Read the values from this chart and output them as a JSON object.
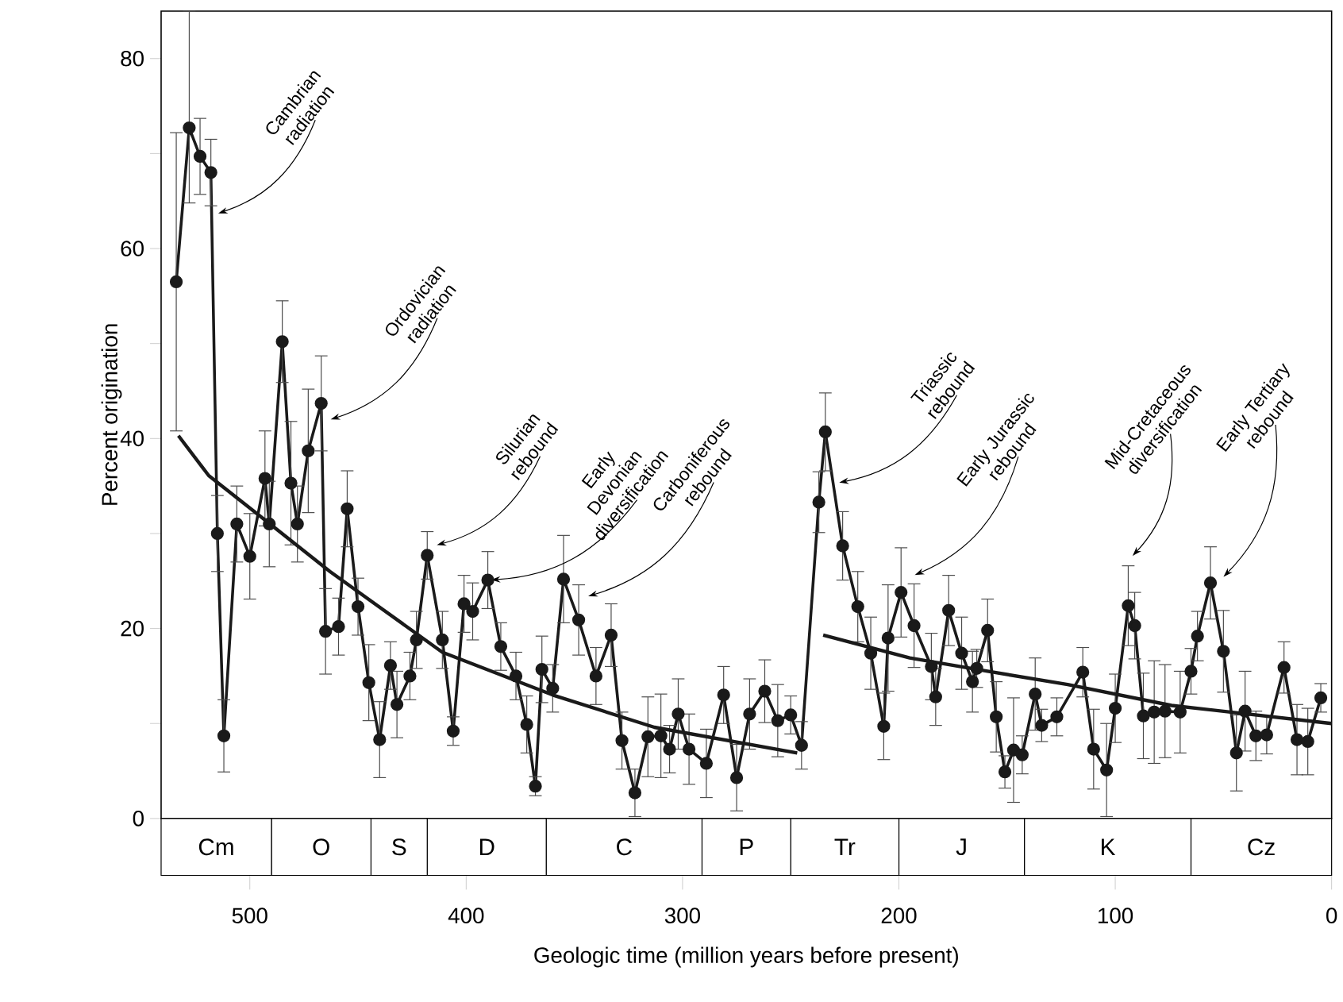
{
  "chart_data": [
    {
      "type": "line",
      "ylabel": "Percent origination",
      "xlim": [
        541,
        0
      ],
      "ylim": [
        0,
        85
      ],
      "tick_labels": "y",
      "yticks": [
        0,
        {
          "value": 10,
          "label": null
        },
        20,
        {
          "value": 30,
          "label": null
        },
        40,
        {
          "value": 50,
          "label": null
        },
        60,
        {
          "value": 70,
          "label": null
        },
        80
      ],
      "line_style": "solid",
      "series": [
        {
          "color": "#1a1a1a",
          "marker": "circle",
          "x": [
            534,
            528,
            523,
            518,
            515,
            512,
            506,
            500,
            493,
            491,
            485,
            481,
            478,
            473,
            467,
            465,
            459,
            455,
            450,
            445,
            440,
            435,
            432,
            426,
            423,
            418,
            411,
            406,
            401,
            397,
            390,
            384,
            377,
            372,
            368,
            365,
            360,
            355,
            348,
            340,
            333,
            328,
            322,
            316,
            310,
            306,
            302,
            297,
            289,
            281,
            275,
            269,
            262,
            256,
            250,
            245,
            237,
            234,
            226,
            219,
            213,
            207,
            205,
            199,
            193,
            185,
            183,
            177,
            171,
            166,
            164,
            159,
            155,
            151,
            147,
            143,
            137,
            134,
            127,
            115,
            110,
            104,
            100,
            94,
            91,
            87,
            82,
            77,
            70,
            65,
            62,
            56,
            50,
            44,
            40,
            35,
            30,
            22,
            16,
            11,
            5
          ],
          "values": [
            56.5,
            72.7,
            69.7,
            68,
            30,
            8.7,
            31,
            27.6,
            35.8,
            31,
            50.2,
            35.3,
            31,
            38.7,
            43.7,
            19.7,
            20.2,
            32.6,
            22.3,
            14.3,
            8.3,
            16.1,
            12,
            15,
            18.8,
            27.7,
            18.8,
            9.2,
            22.6,
            21.8,
            25.1,
            18.1,
            15,
            9.9,
            3.4,
            15.7,
            13.7,
            25.2,
            20.9,
            15,
            19.3,
            8.2,
            2.7,
            8.6,
            8.7,
            7.3,
            11,
            7.3,
            5.8,
            13,
            4.3,
            11,
            13.4,
            10.3,
            10.9,
            7.7,
            33.3,
            40.7,
            28.7,
            22.3,
            17.4,
            9.7,
            19,
            23.8,
            20.3,
            16,
            12.8,
            21.9,
            17.4,
            14.4,
            15.8,
            19.8,
            10.7,
            4.9,
            7.2,
            6.7,
            13.1,
            9.8,
            10.7,
            15.4,
            7.3,
            5.1,
            11.6,
            22.4,
            20.3,
            10.8,
            11.2,
            11.3,
            11.2,
            15.5,
            19.2,
            24.8,
            17.6,
            6.9,
            11.3,
            8.7,
            8.8,
            15.9,
            8.3,
            8.1,
            12.7
          ],
          "errors": [
            15.7,
            [
              64.8,
              85
            ],
            4,
            3.5,
            4,
            3.8,
            4,
            4.5,
            5,
            4.5,
            4.3,
            6.5,
            4,
            6.5,
            5,
            4.5,
            3,
            4,
            3,
            4,
            4,
            2.5,
            3.5,
            2.5,
            3,
            2.5,
            3,
            1.5,
            3,
            3,
            3,
            2.5,
            2.5,
            3,
            1,
            3.5,
            2.5,
            4.6,
            3.7,
            3,
            3.3,
            3,
            2.5,
            4.2,
            4.4,
            2.5,
            3.7,
            3.7,
            3.6,
            3,
            3.5,
            3.7,
            3.3,
            3.8,
            2,
            2.5,
            3.2,
            4.1,
            3.6,
            3.7,
            3.8,
            3.5,
            5.6,
            4.7,
            4.4,
            3.5,
            3,
            3.7,
            3.8,
            3.2,
            2,
            3.3,
            3.7,
            1.7,
            5.5,
            2,
            3.8,
            1.7,
            2,
            2.6,
            4.2,
            4.9,
            3.6,
            4.2,
            3.5,
            4.5,
            5.4,
            4.9,
            4.3,
            2.4,
            2.6,
            3.8,
            4.3,
            4,
            4.2,
            2.6,
            2,
            2.7,
            3.7,
            3.5,
            1.5
          ]
        },
        {
          "color": "#1a1a1a",
          "marker": "none",
          "x": [
            533,
            519,
            494,
            463,
            411,
            360,
            313,
            247
          ],
          "values": [
            40.3,
            36.1,
            31.6,
            26,
            17.5,
            13,
            9.6,
            6.9
          ]
        },
        {
          "color": "#1a1a1a",
          "marker": "none",
          "x": [
            235,
            195,
            159,
            122,
            74,
            0
          ],
          "values": [
            19.3,
            16.9,
            15.5,
            14.1,
            11.9,
            10
          ]
        }
      ],
      "annotations": [
        {
          "text": "Cambrian radiation",
          "x": 516,
          "y": 63.6
        },
        {
          "text": "Ordovician radiation",
          "x": 464,
          "y": 41.9
        },
        {
          "text": "Silurian rebound",
          "x": 415,
          "y": 28.7
        },
        {
          "text": "Early Devonian diversification",
          "x": 390,
          "y": 25.1
        },
        {
          "text": "Carboniferous rebound",
          "x": 345,
          "y": 23.3
        },
        {
          "text": "Triassic rebound",
          "x": 229,
          "y": 35.3
        },
        {
          "text": "Early Jurassic rebound",
          "x": 194,
          "y": 25.5
        },
        {
          "text": "Mid-Cretaceous diversification",
          "x": 93,
          "y": 27.4
        },
        {
          "text": "Early Tertiary rebound",
          "x": 51,
          "y": 25.2
        }
      ]
    },
    {
      "type": "bar",
      "orientation": "horizontal",
      "stacked": true,
      "xlabel": "Geologic time (million years before present)",
      "xlim": [
        541,
        0
      ],
      "xticks": [
        500,
        400,
        300,
        200,
        100,
        0
      ],
      "tick_labels": "x",
      "categories": [
        null
      ],
      "series": [
        {
          "name": "Cz",
          "color": "#ffffff",
          "values": [
            65
          ]
        },
        {
          "name": "K",
          "color": "#ffffff",
          "values": [
            77
          ]
        },
        {
          "name": "J",
          "color": "#ffffff",
          "values": [
            58
          ]
        },
        {
          "name": "Tr",
          "color": "#ffffff",
          "values": [
            50
          ]
        },
        {
          "name": "P",
          "color": "#ffffff",
          "values": [
            41
          ]
        },
        {
          "name": "C",
          "color": "#ffffff",
          "values": [
            72
          ]
        },
        {
          "name": "D",
          "color": "#ffffff",
          "values": [
            55
          ]
        },
        {
          "name": "S",
          "color": "#ffffff",
          "values": [
            26
          ]
        },
        {
          "name": "O",
          "color": "#ffffff",
          "values": [
            46
          ]
        },
        {
          "name": "Cm",
          "color": "#ffffff",
          "values": [
            51
          ]
        }
      ]
    }
  ]
}
